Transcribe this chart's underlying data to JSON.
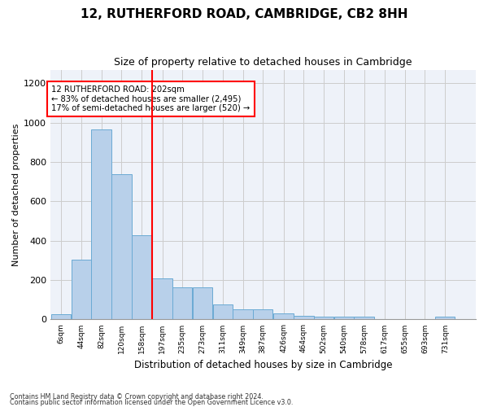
{
  "title": "12, RUTHERFORD ROAD, CAMBRIDGE, CB2 8HH",
  "subtitle": "Size of property relative to detached houses in Cambridge",
  "xlabel": "Distribution of detached houses by size in Cambridge",
  "ylabel": "Number of detached properties",
  "bar_color": "#b8d0ea",
  "bar_edge_color": "#6aaad4",
  "grid_color": "#cccccc",
  "vline_x": 197,
  "vline_color": "red",
  "annotation_line1": "12 RUTHERFORD ROAD: 202sqm",
  "annotation_line2": "← 83% of detached houses are smaller (2,495)",
  "annotation_line3": "17% of semi-detached houses are larger (520) →",
  "annotation_box_color": "white",
  "annotation_box_edge": "red",
  "footnote1": "Contains HM Land Registry data © Crown copyright and database right 2024.",
  "footnote2": "Contains public sector information licensed under the Open Government Licence v3.0.",
  "bin_edges": [
    6,
    44,
    82,
    120,
    158,
    197,
    235,
    273,
    311,
    349,
    387,
    426,
    464,
    502,
    540,
    578,
    617,
    655,
    693,
    731,
    769
  ],
  "bar_heights": [
    25,
    305,
    965,
    740,
    430,
    210,
    165,
    165,
    75,
    50,
    50,
    30,
    20,
    15,
    15,
    15,
    0,
    0,
    0,
    15
  ],
  "ylim": [
    0,
    1270
  ],
  "yticks": [
    0,
    200,
    400,
    600,
    800,
    1000,
    1200
  ],
  "background_color": "#eef2f9",
  "fig_width": 6.0,
  "fig_height": 5.0,
  "dpi": 100
}
